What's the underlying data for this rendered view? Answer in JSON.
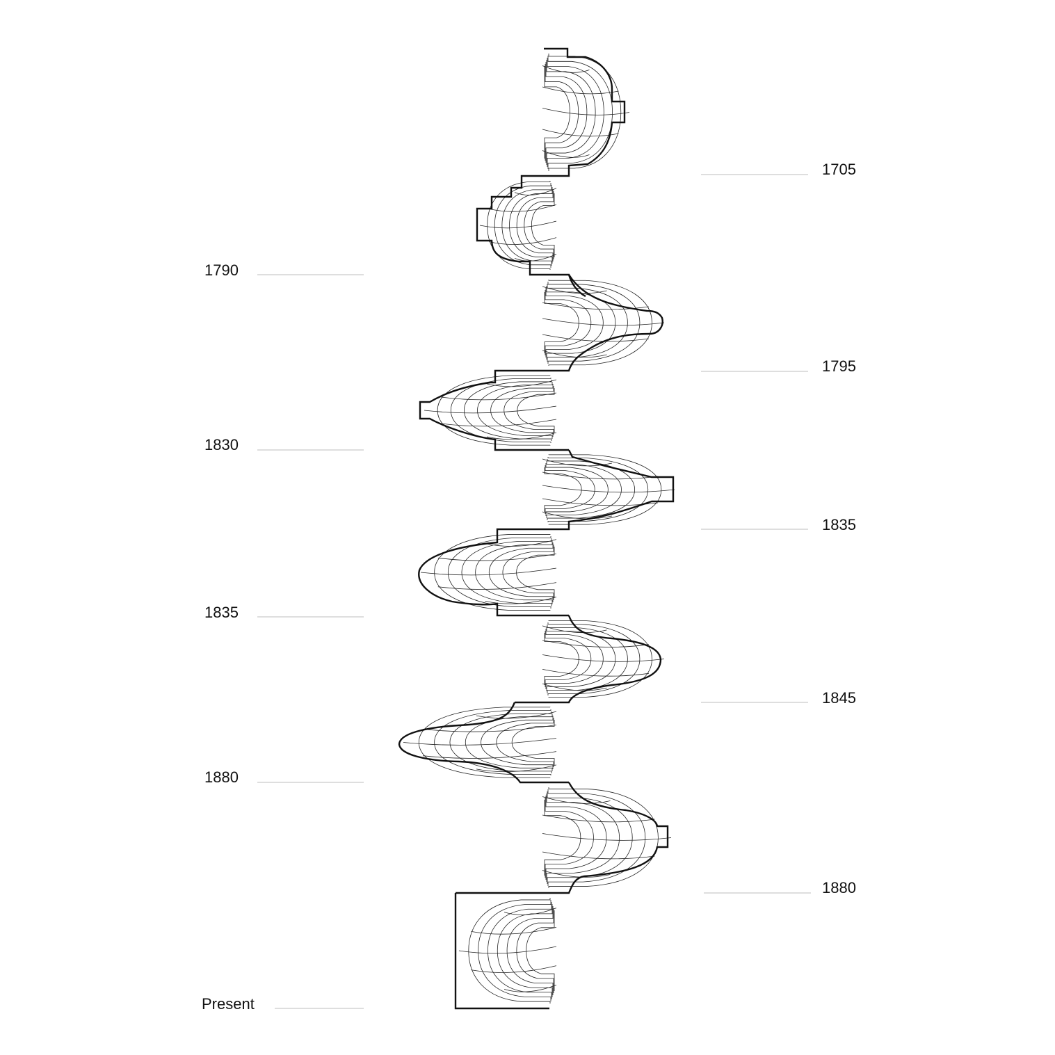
{
  "diagram": {
    "left_labels": [
      "1790",
      "1830",
      "1835",
      "1880",
      "Present"
    ],
    "right_labels": [
      "1705",
      "1795",
      "1835",
      "1845",
      "1880"
    ]
  }
}
